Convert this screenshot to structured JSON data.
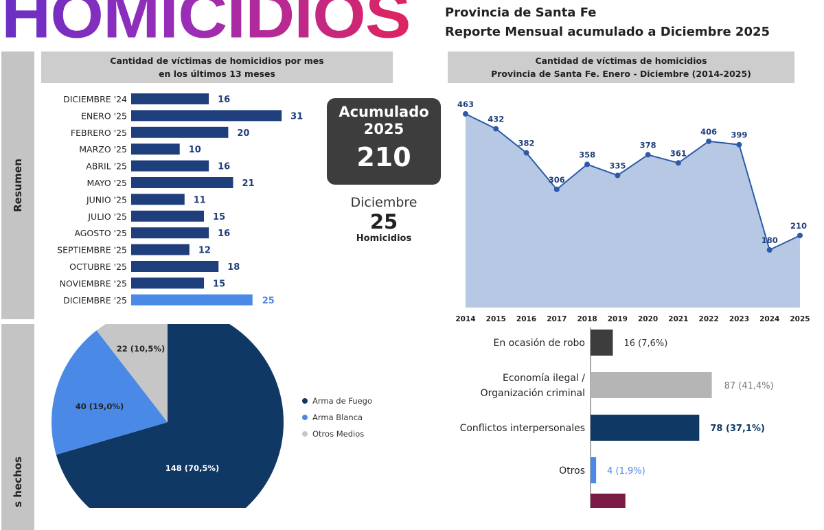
{
  "header": {
    "title": "HOMICIDIOS",
    "subtitle_1": "Provincia de Santa Fe",
    "subtitle_2": "Reporte Mensual acumulado a Diciembre 2025"
  },
  "sections": {
    "resumen": "Resumen",
    "hechos": "s hechos"
  },
  "summary": {
    "acumulado_label": "Acumulado",
    "acumulado_year": "2025",
    "acumulado_value": "210",
    "month_label": "Diciembre",
    "month_value": "25",
    "month_unit": "Homicidios"
  },
  "colors": {
    "bar": "#1f3f7c",
    "bar_highlight": "#4a8ae6",
    "line": "#2b5aa8",
    "area": "#b6c8e3",
    "pie_fuego": "#0f3864",
    "pie_blanca": "#4a8ae6",
    "pie_otros": "#c6c6c6"
  },
  "chart_data": [
    {
      "type": "bar",
      "orientation": "horizontal",
      "title": "Cantidad de víctimas de homicidios por mes",
      "subtitle": "en los últimos 13 meses",
      "categories": [
        "DICIEMBRE '24",
        "ENERO '25",
        "FEBRERO '25",
        "MARZO '25",
        "ABRIL '25",
        "MAYO '25",
        "JUNIO '25",
        "JULIO '25",
        "AGOSTO '25",
        "SEPTIEMBRE '25",
        "OCTUBRE '25",
        "NOVIEMBRE '25",
        "DICIEMBRE '25"
      ],
      "values": [
        16,
        31,
        20,
        10,
        16,
        21,
        11,
        15,
        16,
        12,
        18,
        15,
        25
      ],
      "highlight": "DICIEMBRE '25"
    },
    {
      "type": "area",
      "title": "Cantidad de víctimas de homicidios",
      "subtitle": "Provincia de Santa Fe. Enero - Diciembre (2014-2025)",
      "x": [
        "2014",
        "2015",
        "2016",
        "2017",
        "2018",
        "2019",
        "2020",
        "2021",
        "2022",
        "2023",
        "2024",
        "2025"
      ],
      "values": [
        463,
        432,
        382,
        306,
        358,
        335,
        378,
        361,
        406,
        399,
        180,
        210
      ],
      "ylim": [
        60,
        470
      ],
      "grid": false
    },
    {
      "type": "pie",
      "slices": [
        {
          "name": "Arma de Fuego",
          "value": 148,
          "label": "148 (70,5%)",
          "color": "#0f3864"
        },
        {
          "name": "Arma Blanca",
          "value": 40,
          "label": "40 (19,0%)",
          "color": "#4a8ae6"
        },
        {
          "name": "Otros Medios",
          "value": 22,
          "label": "22 (10,5%)",
          "color": "#c6c6c6"
        }
      ],
      "legend": "right"
    },
    {
      "type": "bar",
      "orientation": "horizontal",
      "categories": [
        [
          "En ocasión de robo"
        ],
        [
          "Economía ilegal /",
          "Organización criminal"
        ],
        [
          "Conflictos interpersonales"
        ],
        [
          "Otros"
        ],
        [
          ""
        ]
      ],
      "values": [
        16,
        87,
        78,
        4,
        25
      ],
      "labels": [
        "16 (7,6%)",
        "87 (41,4%)",
        "78 (37,1%)",
        "4 (1,9%)",
        ""
      ],
      "colors": [
        "#3d3d3d",
        "#b5b5b5",
        "#0f3864",
        "#4a8ae6",
        "#7a1a45"
      ],
      "label_colors": [
        "#333333",
        "#777777",
        "#0f3864",
        "#4a8ae6",
        "#7a1a45"
      ]
    }
  ]
}
